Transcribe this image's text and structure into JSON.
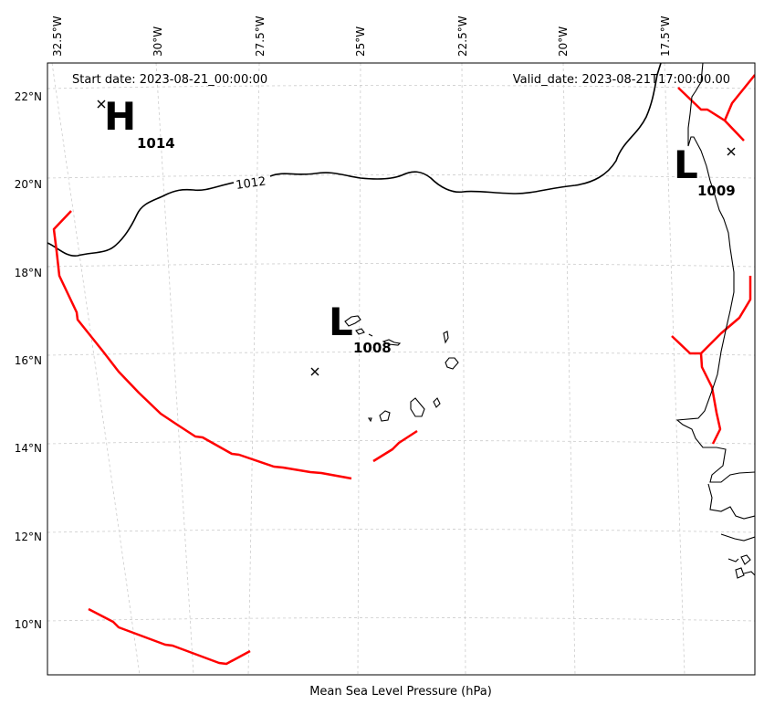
{
  "header": {
    "start_date": "Start date: 2023-08-21_00:00:00",
    "valid_date": "Valid_date: 2023-08-21T17:00:00.00"
  },
  "xlabel": "Mean Sea Level Pressure (hPa)",
  "lon_ticks": [
    "32.5°W",
    "30°W",
    "27.5°W",
    "25°W",
    "22.5°W",
    "20°W",
    "17.5°W"
  ],
  "lat_ticks": [
    "22°N",
    "20°N",
    "18°N",
    "16°N",
    "14°N",
    "12°N",
    "10°N"
  ],
  "pressure_centers": [
    {
      "type": "H",
      "value": "1014"
    },
    {
      "type": "L",
      "value": "1009"
    },
    {
      "type": "L",
      "value": "1008"
    }
  ],
  "isobar_label": "1012",
  "colors": {
    "fronts": "#ff0000",
    "isobar": "#000000",
    "grid": "#cccccc"
  }
}
